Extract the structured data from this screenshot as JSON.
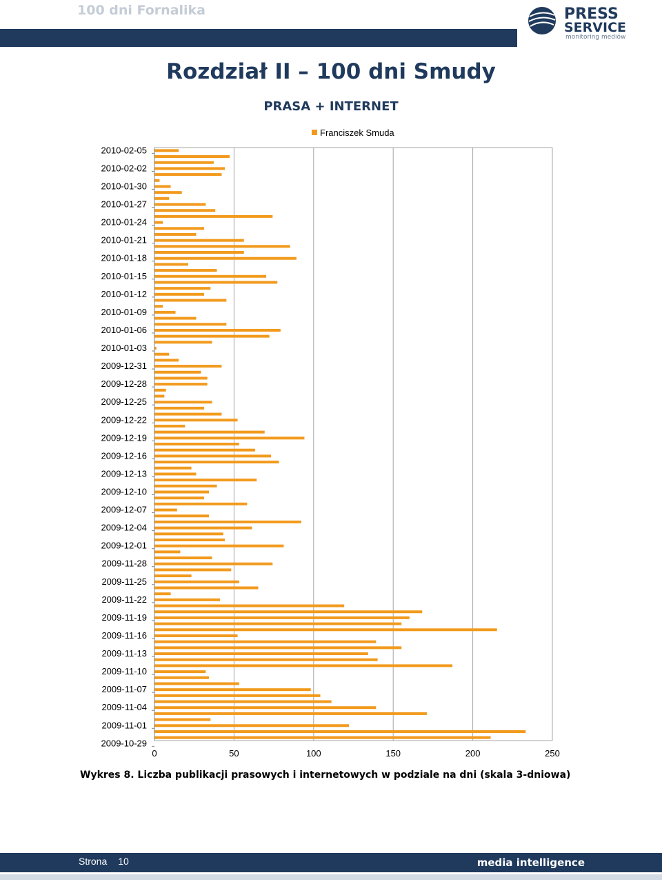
{
  "header": {
    "title": "100 dni Fornalika",
    "logo_text_top": "PRESS",
    "logo_text_mid": "SERVICE",
    "logo_text_sub": "monitoring mediów"
  },
  "page": {
    "title": "Rozdział II – 100 dni Smudy",
    "subtitle": "PRASA + INTERNET",
    "caption": "Wykres 8. Liczba publikacji prasowych i internetowych w podziale na dni (skala 3-dniowa)"
  },
  "footer": {
    "page_label": "Strona",
    "page_number": "10",
    "brand": "media intelligence"
  },
  "colors": {
    "bar": "#f29a1d",
    "navy": "#1f3a5c",
    "grid": "#a6a6a6"
  },
  "chart_data": {
    "type": "bar",
    "orientation": "horizontal",
    "title": "PRASA + INTERNET",
    "legend": "top-right",
    "xlim": [
      0,
      250
    ],
    "xticks": [
      "0",
      "50",
      "100",
      "150",
      "200",
      "250"
    ],
    "grid": true,
    "tick_labels": [
      "2010-02-05",
      "2010-02-02",
      "2010-01-30",
      "2010-01-27",
      "2010-01-24",
      "2010-01-21",
      "2010-01-18",
      "2010-01-15",
      "2010-01-12",
      "2010-01-09",
      "2010-01-06",
      "2010-01-03",
      "2009-12-31",
      "2009-12-28",
      "2009-12-25",
      "2009-12-22",
      "2009-12-19",
      "2009-12-16",
      "2009-12-13",
      "2009-12-10",
      "2009-12-07",
      "2009-12-04",
      "2009-12-01",
      "2009-11-28",
      "2009-11-25",
      "2009-11-22",
      "2009-11-19",
      "2009-11-16",
      "2009-11-13",
      "2009-11-10",
      "2009-11-07",
      "2009-11-04",
      "2009-11-01",
      "2009-10-29"
    ],
    "series": [
      {
        "name": "Franciszek Smuda",
        "values": [
          15,
          47,
          37,
          44,
          42,
          3,
          10,
          17,
          9,
          32,
          38,
          74,
          5,
          31,
          26,
          56,
          85,
          56,
          89,
          21,
          39,
          70,
          77,
          35,
          31,
          45,
          5,
          13,
          26,
          45,
          79,
          72,
          36,
          1,
          9,
          15,
          42,
          29,
          33,
          33,
          7,
          6,
          36,
          31,
          42,
          52,
          19,
          69,
          94,
          53,
          63,
          73,
          78,
          23,
          26,
          64,
          39,
          34,
          31,
          58,
          14,
          34,
          92,
          61,
          43,
          44,
          81,
          16,
          36,
          74,
          48,
          23,
          53,
          65,
          10,
          41,
          119,
          168,
          160,
          155,
          215,
          52,
          139,
          155,
          134,
          140,
          187,
          32,
          34,
          53,
          98,
          104,
          111,
          139,
          171,
          35,
          122,
          233,
          211
        ]
      }
    ]
  }
}
